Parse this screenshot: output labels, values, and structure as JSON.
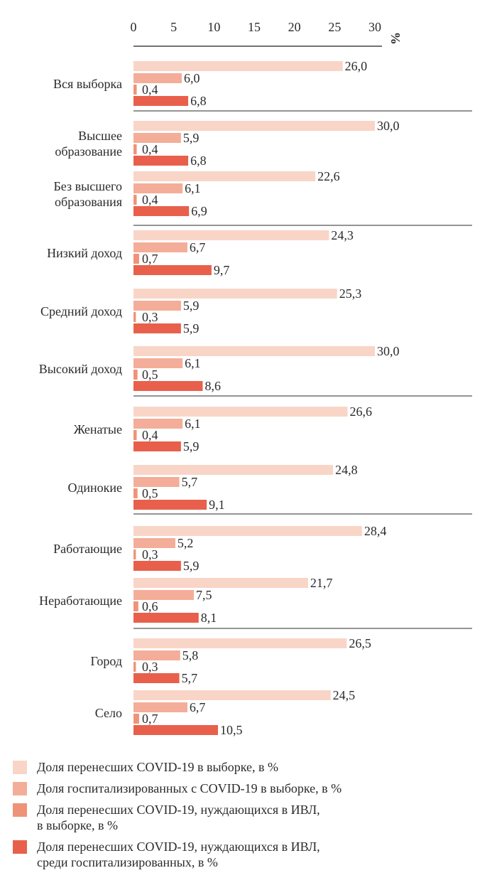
{
  "chart_data": {
    "type": "bar",
    "orientation": "horizontal",
    "xlim": [
      0,
      30
    ],
    "x_ticks": [
      "0",
      "5",
      "10",
      "15",
      "20",
      "25",
      "30"
    ],
    "unit_label": "%",
    "grid": false,
    "legend_position": "bottom",
    "groups": [
      {
        "categories": [
          {
            "label": [
              "Вся выборка"
            ],
            "values": [
              26.0,
              6.0,
              0.4,
              6.8
            ],
            "labels": [
              "26,0",
              "6,0",
              "0,4",
              "6,8"
            ]
          }
        ]
      },
      {
        "categories": [
          {
            "label": [
              "Высшее",
              "образование"
            ],
            "values": [
              30.0,
              5.9,
              0.4,
              6.8
            ],
            "labels": [
              "30,0",
              "5,9",
              "0,4",
              "6,8"
            ]
          },
          {
            "label": [
              "Без высшего",
              "образования"
            ],
            "values": [
              22.6,
              6.1,
              0.4,
              6.9
            ],
            "labels": [
              "22,6",
              "6,1",
              "0,4",
              "6,9"
            ]
          }
        ]
      },
      {
        "categories": [
          {
            "label": [
              "Низкий доход"
            ],
            "values": [
              24.3,
              6.7,
              0.7,
              9.7
            ],
            "labels": [
              "24,3",
              "6,7",
              "0,7",
              "9,7"
            ]
          },
          {
            "label": [
              "Средний доход"
            ],
            "values": [
              25.3,
              5.9,
              0.3,
              5.9
            ],
            "labels": [
              "25,3",
              "5,9",
              "0,3",
              "5,9"
            ]
          },
          {
            "label": [
              "Высокий доход"
            ],
            "values": [
              30.0,
              6.1,
              0.5,
              8.6
            ],
            "labels": [
              "30,0",
              "6,1",
              "0,5",
              "8,6"
            ]
          }
        ]
      },
      {
        "categories": [
          {
            "label": [
              "Женатые"
            ],
            "values": [
              26.6,
              6.1,
              0.4,
              5.9
            ],
            "labels": [
              "26,6",
              "6,1",
              "0,4",
              "5,9"
            ]
          },
          {
            "label": [
              "Одинокие"
            ],
            "values": [
              24.8,
              5.7,
              0.5,
              9.1
            ],
            "labels": [
              "24,8",
              "5,7",
              "0,5",
              "9,1"
            ]
          }
        ]
      },
      {
        "categories": [
          {
            "label": [
              "Работающие"
            ],
            "values": [
              28.4,
              5.2,
              0.3,
              5.9
            ],
            "labels": [
              "28,4",
              "5,2",
              "0,3",
              "5,9"
            ]
          },
          {
            "label": [
              "Неработающие"
            ],
            "values": [
              21.7,
              7.5,
              0.6,
              8.1
            ],
            "labels": [
              "21,7",
              "7,5",
              "0,6",
              "8,1"
            ]
          }
        ]
      },
      {
        "categories": [
          {
            "label": [
              "Город"
            ],
            "values": [
              26.5,
              5.8,
              0.3,
              5.7
            ],
            "labels": [
              "26,5",
              "5,8",
              "0,3",
              "5,7"
            ]
          },
          {
            "label": [
              "Село"
            ],
            "values": [
              24.5,
              6.7,
              0.7,
              10.5
            ],
            "labels": [
              "24,5",
              "6,7",
              "0,7",
              "10,5"
            ]
          }
        ]
      }
    ],
    "series": [
      {
        "name": "Доля перенесших COVID-19 в выборке, в %",
        "color": "#f9d5c7"
      },
      {
        "name": "Доля госпитализированных с COVID-19 в выборке, в %",
        "color": "#f4ad98"
      },
      {
        "name": "Доля перенесших COVID-19, нуждающихся в ИВЛ, в выборке, в %",
        "color": "#ef9378"
      },
      {
        "name": "Доля перенесших COVID-19, нуждающихся в ИВЛ, среди госпитализированных, в %",
        "color": "#e8604c"
      }
    ]
  },
  "legend": [
    {
      "lines": [
        "Доля перенесших COVID-19 в выборке, в %"
      ]
    },
    {
      "lines": [
        "Доля госпитализированных с COVID-19 в выборке, в %"
      ]
    },
    {
      "lines": [
        "Доля перенесших COVID-19, нуждающихся в ИВЛ,",
        "в выборке, в %"
      ]
    },
    {
      "lines": [
        "Доля перенесших COVID-19, нуждающихся в ИВЛ,",
        "среди госпитализированных, в %"
      ]
    }
  ]
}
